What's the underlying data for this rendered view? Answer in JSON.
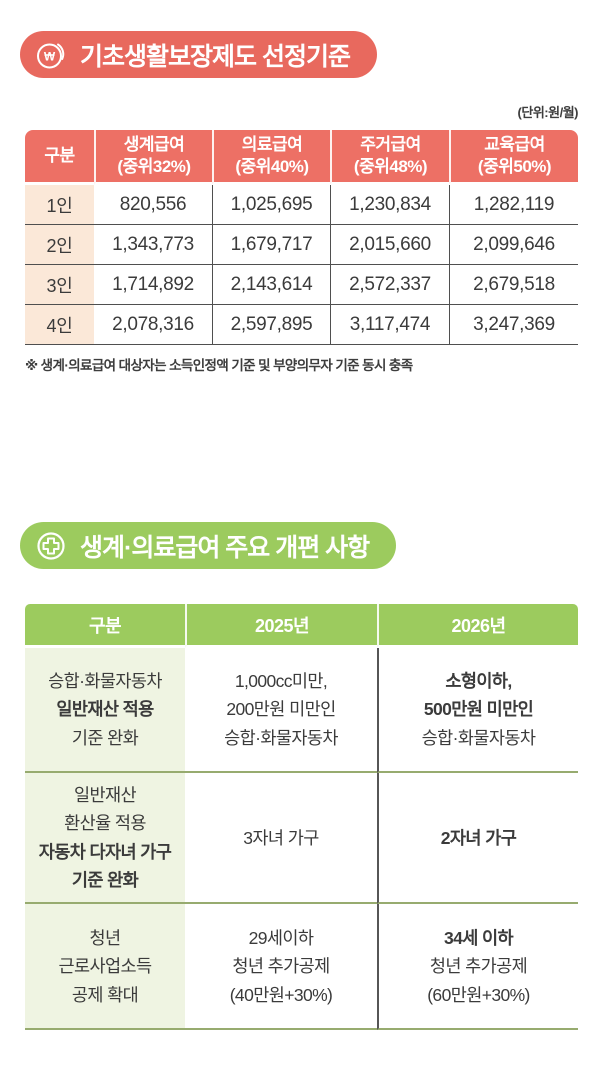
{
  "colors": {
    "red": "#E8695E",
    "red_header": "#ED7065",
    "peach": "#FBE8D8",
    "green": "#9CCB5E",
    "light_green": "#EFF4E2",
    "olive_line": "#97AB6F",
    "dark_line": "#4F4F4F",
    "dark_vline": "#565656",
    "text": "#3B3B3B"
  },
  "section1": {
    "badge": {
      "label": "기초생활보장제도 선정기준",
      "icon": "won-coin-icon"
    },
    "unit_note": "(단위:원/월)",
    "table": {
      "columns": [
        {
          "label": "구분",
          "sub": ""
        },
        {
          "label": "생계급여",
          "sub": "(중위32%)"
        },
        {
          "label": "의료급여",
          "sub": "(중위40%)"
        },
        {
          "label": "주거급여",
          "sub": "(중위48%)"
        },
        {
          "label": "교육급여",
          "sub": "(중위50%)"
        }
      ],
      "rows": [
        {
          "label": "1인",
          "values": [
            "820,556",
            "1,025,695",
            "1,230,834",
            "1,282,119"
          ]
        },
        {
          "label": "2인",
          "values": [
            "1,343,773",
            "1,679,717",
            "2,015,660",
            "2,099,646"
          ]
        },
        {
          "label": "3인",
          "values": [
            "1,714,892",
            "2,143,614",
            "2,572,337",
            "2,679,518"
          ]
        },
        {
          "label": "4인",
          "values": [
            "2,078,316",
            "2,597,895",
            "3,117,474",
            "3,247,369"
          ]
        }
      ]
    },
    "footnote": "※ 생계·의료급여 대상자는 소득인정액 기준 및 부양의무자 기준 동시 충족"
  },
  "section2": {
    "badge": {
      "label": "생계·의료급여 주요 개편 사항",
      "icon": "medical-cross-icon"
    },
    "table": {
      "columns": [
        "구분",
        "2025년",
        "2026년"
      ],
      "rows": [
        {
          "category": [
            {
              "text": "승합·화물자동차",
              "bold": false
            },
            {
              "text": "일반재산 적용",
              "bold": true
            },
            {
              "text": "기준 완화",
              "bold": false
            }
          ],
          "y2025": [
            {
              "text": "1,000cc미만,",
              "bold": false
            },
            {
              "text": "200만원 미만인",
              "bold": false
            },
            {
              "text": "승합·화물자동차",
              "bold": false
            }
          ],
          "y2026": [
            {
              "text": "소형이하,",
              "bold": true
            },
            {
              "text": "500만원 미만인",
              "bold": true
            },
            {
              "text": "승합·화물자동차",
              "bold": false
            }
          ]
        },
        {
          "category": [
            {
              "text": "일반재산",
              "bold": false
            },
            {
              "text": "환산율 적용",
              "bold": false
            },
            {
              "text": "자동차 다자녀 가구",
              "bold": true
            },
            {
              "text": "기준 완화",
              "bold": true
            }
          ],
          "y2025": [
            {
              "text": "3자녀 가구",
              "bold": false
            }
          ],
          "y2026": [
            {
              "text": "2자녀 가구",
              "bold": true
            }
          ]
        },
        {
          "category": [
            {
              "text": "청년",
              "bold": false
            },
            {
              "text": "근로사업소득",
              "bold": false
            },
            {
              "text": "공제 확대",
              "bold": false
            }
          ],
          "y2025": [
            {
              "text": "29세이하",
              "bold": false
            },
            {
              "text": "청년 추가공제",
              "bold": false
            },
            {
              "text": "(40만원+30%)",
              "bold": false
            }
          ],
          "y2026": [
            {
              "text": "34세 이하",
              "bold": true
            },
            {
              "text": "청년 추가공제",
              "bold": false
            },
            {
              "text": "(60만원+30%)",
              "bold": false
            }
          ]
        }
      ]
    }
  }
}
